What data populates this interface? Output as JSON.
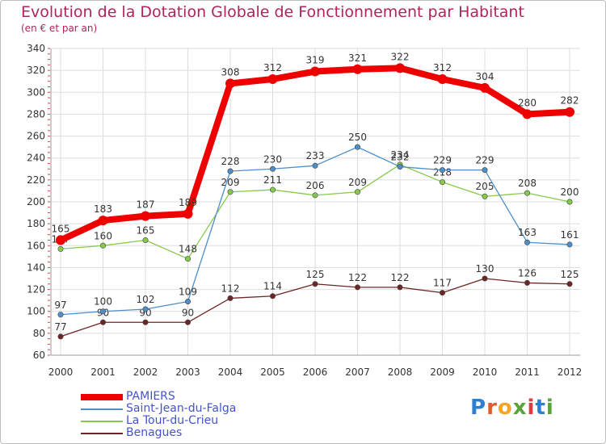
{
  "header": {
    "title": "Evolution de la Dotation Globale de Fonctionnement par Habitant",
    "subtitle": "(en € et par an)"
  },
  "chart_data": {
    "type": "line",
    "categories": [
      "2000",
      "2001",
      "2002",
      "2003",
      "2004",
      "2005",
      "2006",
      "2007",
      "2008",
      "2009",
      "2010",
      "2011",
      "2012"
    ],
    "ylim": [
      60,
      340
    ],
    "yticks": [
      60,
      80,
      100,
      120,
      140,
      160,
      180,
      200,
      220,
      240,
      260,
      280,
      300,
      320,
      340
    ],
    "grid": true,
    "series": [
      {
        "name": "PAMIERS",
        "color": "#ee0000",
        "values": [
          165,
          183,
          187,
          189,
          308,
          312,
          319,
          321,
          322,
          312,
          304,
          280,
          282
        ]
      },
      {
        "name": "Saint-Jean-du-Falga",
        "color": "#4f8fc9",
        "values": [
          97,
          100,
          102,
          109,
          228,
          230,
          233,
          250,
          232,
          229,
          229,
          163,
          161
        ]
      },
      {
        "name": "La Tour-du-Crieu",
        "color": "#86c94b",
        "values": [
          157,
          160,
          165,
          148,
          209,
          211,
          206,
          209,
          234,
          218,
          205,
          208,
          200
        ]
      },
      {
        "name": "Benagues",
        "color": "#6e2525",
        "values": [
          77,
          90,
          90,
          90,
          112,
          114,
          125,
          122,
          122,
          117,
          130,
          126,
          125
        ]
      }
    ]
  },
  "logo": {
    "text": "Proxiti",
    "letters": [
      "P",
      "r",
      "o",
      "x",
      "i",
      "t",
      "i"
    ]
  },
  "colors": {
    "title": "#b0235d",
    "legend_text": "#4455cc",
    "grid": "#dddddd"
  }
}
